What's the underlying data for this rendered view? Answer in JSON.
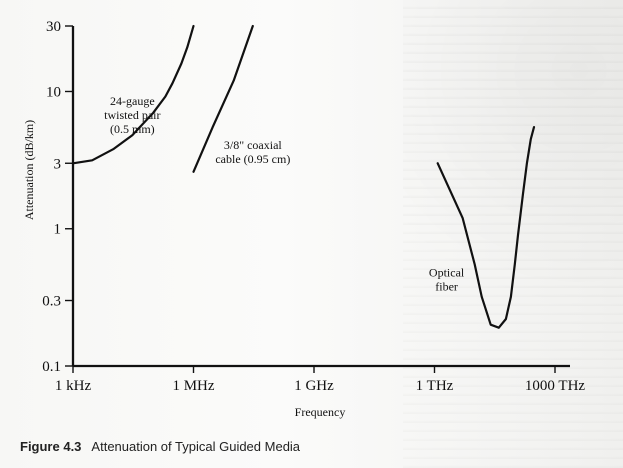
{
  "chart_data": {
    "type": "line",
    "xscale": "log",
    "yscale": "log",
    "xlabel": "Frequency",
    "ylabel": "Attenuation (dB/km)",
    "xticks": [
      {
        "value": 1000,
        "label": "1 kHz"
      },
      {
        "value": 1000000,
        "label": "1 MHz"
      },
      {
        "value": 1000000000,
        "label": "1 GHz"
      },
      {
        "value": 1000000000000,
        "label": "1 THz"
      },
      {
        "value": 1000000000000000,
        "label": "1000 THz"
      }
    ],
    "yticks": [
      {
        "value": 0.1,
        "label": "0.1"
      },
      {
        "value": 0.3,
        "label": "0.3"
      },
      {
        "value": 1,
        "label": "1"
      },
      {
        "value": 3,
        "label": "3"
      },
      {
        "value": 10,
        "label": "10"
      },
      {
        "value": 30,
        "label": "30"
      }
    ],
    "xlim": [
      1000,
      1000000000000000
    ],
    "ylim": [
      0.1,
      30
    ],
    "series": [
      {
        "name": "24-gauge twisted pair (0.5 mm)",
        "x": [
          1000,
          3000,
          10000,
          30000,
          100000,
          200000,
          300000,
          500000,
          700000,
          1000000
        ],
        "y": [
          3.0,
          3.15,
          3.8,
          4.8,
          7.0,
          9.2,
          11.5,
          16.0,
          21.0,
          30.0
        ]
      },
      {
        "name": "3/8\" coaxial cable (0.95 cm)",
        "x": [
          1000000,
          3000000,
          10000000,
          30000000
        ],
        "y": [
          2.6,
          5.5,
          12.0,
          30.0
        ]
      },
      {
        "name": "Optical fiber",
        "x": [
          1200000000000,
          5000000000000,
          10000000000000,
          15000000000000,
          25000000000000,
          40000000000000,
          60000000000000,
          80000000000000,
          100000000000000,
          120000000000000,
          160000000000000,
          200000000000000,
          250000000000000,
          300000000000000
        ],
        "y": [
          3.0,
          1.2,
          0.55,
          0.32,
          0.2,
          0.19,
          0.22,
          0.32,
          0.55,
          0.9,
          1.8,
          3.0,
          4.5,
          5.5
        ]
      }
    ],
    "annotations": [
      {
        "lines": [
          "24-gauge",
          "twisted pair",
          "(0.5 mm)"
        ],
        "x": 30000,
        "y": 8.0
      },
      {
        "lines": [
          "3/8\" coaxial",
          "cable (0.95 cm)"
        ],
        "x": 30000000,
        "y": 3.8
      },
      {
        "lines": [
          "Optical",
          "fiber"
        ],
        "x": 2000000000000,
        "y": 0.45
      }
    ]
  },
  "caption": {
    "figure": "Figure 4.3",
    "title": "Attenuation of Typical Guided Media"
  }
}
